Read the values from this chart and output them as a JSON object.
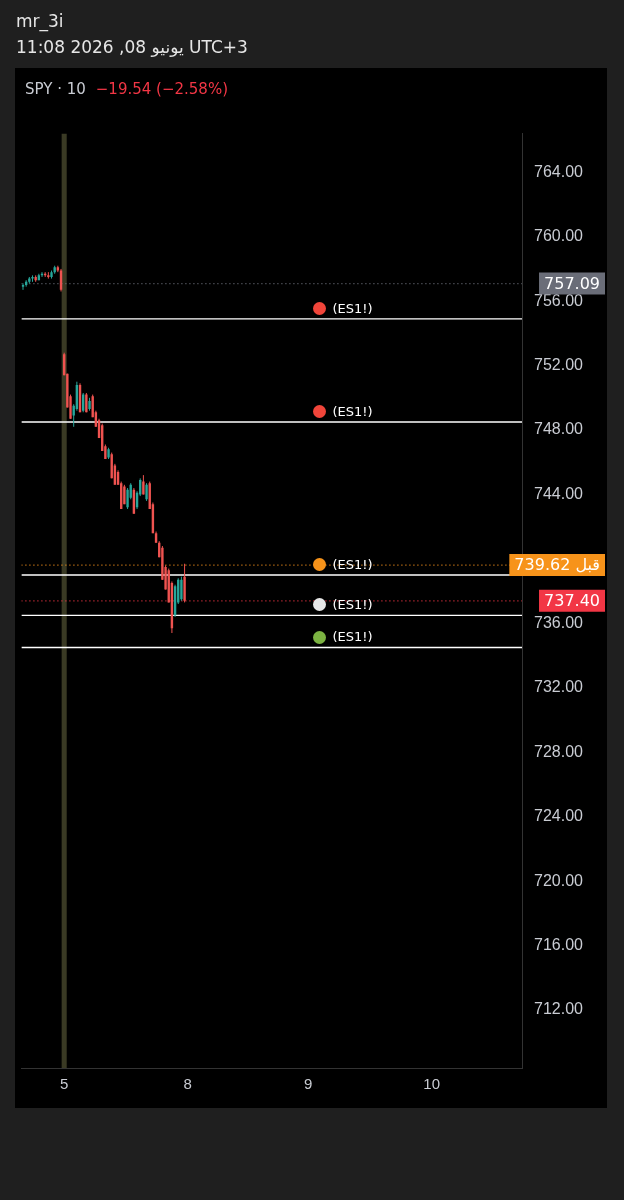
{
  "chart_data": {
    "type": "candlestick",
    "title": "SPY · 10",
    "subtitle": "−19.54 (−2.58%)",
    "annotations": [
      "mr_3i",
      "11:08 2026 ,08 يونيو UTC+3"
    ],
    "categories": [
      null,
      null,
      null,
      null,
      null,
      null,
      null,
      null,
      null,
      null,
      null,
      null,
      null,
      "5",
      null,
      null,
      null,
      null,
      null,
      null,
      null,
      null,
      null,
      null,
      null,
      null,
      null,
      null,
      null,
      null,
      null,
      null,
      null,
      null,
      null,
      null,
      null,
      null,
      null,
      null,
      null,
      null,
      null,
      null,
      null,
      null,
      null,
      null,
      null,
      null,
      null,
      null,
      "8",
      null,
      null,
      null,
      null,
      null,
      null,
      null,
      null,
      null,
      null,
      null,
      null,
      null,
      null,
      null,
      null,
      null,
      null,
      null,
      null,
      null,
      null,
      null,
      null,
      null,
      null,
      null,
      null,
      null,
      null,
      null,
      null,
      null,
      null,
      null,
      null,
      null,
      "9",
      null,
      null,
      null,
      null,
      null,
      null,
      null,
      null,
      null,
      null,
      null,
      null,
      null,
      null,
      null,
      null,
      null,
      null,
      null,
      null,
      null,
      null,
      null,
      null,
      null,
      null,
      null,
      null,
      null,
      null,
      null,
      null,
      null,
      null,
      null,
      null,
      null,
      null,
      "10",
      null,
      null,
      null,
      null,
      null,
      null,
      null,
      null,
      null,
      null,
      null,
      null,
      null,
      null,
      null,
      null,
      null,
      null,
      null,
      null,
      null,
      null,
      null,
      null,
      null,
      null,
      null,
      null
    ],
    "ohlc": [
      [
        756.9,
        757.1,
        756.7,
        757.0
      ],
      [
        757.0,
        757.3,
        756.9,
        757.2
      ],
      [
        757.2,
        757.5,
        757.1,
        757.4
      ],
      [
        757.4,
        757.6,
        757.2,
        757.5
      ],
      [
        757.5,
        757.6,
        757.2,
        757.3
      ],
      [
        757.3,
        757.7,
        757.3,
        757.6
      ],
      [
        757.6,
        757.8,
        757.5,
        757.7
      ],
      [
        757.7,
        757.8,
        757.5,
        757.6
      ],
      [
        757.6,
        757.8,
        757.4,
        757.5
      ],
      [
        757.5,
        757.9,
        757.4,
        757.8
      ],
      [
        757.8,
        758.2,
        757.7,
        758.1
      ],
      [
        758.1,
        758.2,
        757.8,
        757.9
      ],
      [
        757.9,
        758.0,
        756.6,
        756.7
      ],
      [
        752.7,
        752.8,
        751.4,
        751.4
      ],
      [
        751.5,
        751.5,
        749.4,
        749.4
      ],
      [
        750.1,
        750.2,
        748.7,
        748.7
      ],
      [
        748.9,
        749.6,
        748.2,
        749.5
      ],
      [
        749.3,
        751.0,
        749.2,
        750.8
      ],
      [
        750.8,
        750.9,
        749.1,
        749.1
      ],
      [
        749.2,
        750.3,
        749.1,
        750.2
      ],
      [
        750.2,
        750.3,
        749.1,
        749.1
      ],
      [
        749.3,
        750.0,
        749.2,
        749.8
      ],
      [
        750.1,
        750.2,
        748.8,
        748.8
      ],
      [
        749.1,
        749.2,
        748.2,
        748.2
      ],
      [
        748.6,
        748.7,
        747.5,
        747.5
      ],
      [
        748.3,
        748.4,
        746.7,
        746.7
      ],
      [
        747.0,
        747.1,
        746.2,
        746.2
      ],
      [
        746.3,
        746.9,
        746.2,
        746.8
      ],
      [
        746.5,
        746.6,
        745.0,
        745.0
      ],
      [
        745.8,
        745.9,
        744.6,
        744.6
      ],
      [
        745.4,
        745.5,
        744.6,
        744.6
      ],
      [
        744.7,
        744.8,
        743.1,
        743.1
      ],
      [
        744.5,
        744.6,
        743.4,
        743.4
      ],
      [
        743.2,
        744.4,
        743.1,
        744.3
      ],
      [
        743.8,
        744.7,
        743.7,
        744.6
      ],
      [
        744.3,
        744.4,
        742.8,
        742.8
      ],
      [
        743.2,
        744.2,
        743.1,
        744.1
      ],
      [
        744.0,
        745.0,
        743.9,
        744.9
      ],
      [
        744.8,
        745.2,
        744.0,
        744.0
      ],
      [
        743.7,
        744.7,
        743.6,
        744.6
      ],
      [
        744.7,
        744.8,
        743.1,
        743.1
      ],
      [
        743.4,
        743.5,
        741.6,
        741.6
      ],
      [
        741.6,
        741.7,
        741.0,
        741.0
      ],
      [
        741.0,
        741.1,
        740.1,
        740.1
      ],
      [
        740.7,
        740.8,
        738.7,
        738.7
      ],
      [
        739.5,
        739.6,
        738.1,
        738.1
      ],
      [
        739.3,
        739.4,
        737.3,
        737.3
      ],
      [
        738.5,
        738.6,
        735.4,
        735.7
      ],
      [
        736.5,
        738.4,
        736.4,
        738.3
      ],
      [
        737.3,
        738.8,
        737.2,
        738.7
      ],
      [
        737.5,
        738.9,
        737.4,
        738.7
      ],
      [
        738.9,
        739.7,
        737.3,
        737.4
      ],
      null,
      null,
      null,
      null,
      null,
      null,
      null,
      null,
      null,
      null,
      null,
      null,
      null,
      null,
      null,
      null,
      null,
      null,
      null,
      null,
      null,
      null,
      null,
      null,
      null,
      null,
      null,
      null,
      null,
      null,
      null,
      null,
      null,
      null,
      null,
      null,
      null,
      null,
      null,
      null,
      null,
      null,
      null,
      null,
      null,
      null,
      null,
      null,
      null,
      null,
      null,
      null,
      null,
      null,
      null,
      null,
      null,
      null,
      null,
      null,
      null,
      null,
      null,
      null,
      null,
      null,
      null,
      null,
      null,
      null,
      null,
      null,
      null,
      null,
      null,
      null,
      null,
      null,
      null,
      null,
      null,
      null,
      null,
      null,
      null,
      null,
      null,
      null,
      null,
      null,
      null,
      null,
      null,
      null,
      null,
      null,
      null,
      null,
      null,
      null,
      null,
      null,
      null,
      null,
      null,
      null
    ],
    "ylim": [
      708.4,
      766.4
    ],
    "yticks": [
      {
        "value": 712,
        "label": "712.00"
      },
      {
        "value": 716,
        "label": "716.00"
      },
      {
        "value": 720,
        "label": "720.00"
      },
      {
        "value": 724,
        "label": "724.00"
      },
      {
        "value": 728,
        "label": "728.00"
      },
      {
        "value": 732,
        "label": "732.00"
      },
      {
        "value": 736,
        "label": "736.00"
      },
      {
        "value": 744,
        "label": "744.00"
      },
      {
        "value": 748,
        "label": "748.00"
      },
      {
        "value": 752,
        "label": "752.00"
      },
      {
        "value": 756,
        "label": "756.00"
      },
      {
        "value": 760,
        "label": "760.00"
      },
      {
        "value": 764,
        "label": "764.00"
      }
    ],
    "grid": false,
    "ref_lines": [
      {
        "axis": "y",
        "value": 754.9,
        "label": "(ES1!)",
        "color": "#ffffff",
        "line_style": "solid"
      },
      {
        "axis": "y",
        "value": 748.5,
        "label": "(ES1!)",
        "color": "#ffffff",
        "line_style": "solid"
      },
      {
        "axis": "y",
        "value": 739.0,
        "label": "(ES1!)",
        "color": "#ffffff",
        "line_style": "solid"
      },
      {
        "axis": "y",
        "value": 736.5,
        "label": "(ES1!)",
        "color": "#ffffff",
        "line_style": "solid"
      },
      {
        "axis": "y",
        "value": 734.5,
        "label": "(ES1!)",
        "color": "#ffffff",
        "line_style": "solid"
      },
      {
        "axis": "y",
        "value": 757.09,
        "label": "757.09",
        "color": "#6a6d78",
        "line_style": "dotted"
      },
      {
        "axis": "y",
        "value": 739.62,
        "label": "قبل 739.62",
        "color": "#f7931a",
        "line_style": "dotted"
      },
      {
        "axis": "y",
        "value": 737.4,
        "label": "737.40",
        "color": "#f23645",
        "line_style": "dotted"
      }
    ],
    "bands": [
      {
        "axis": "x",
        "from": "5",
        "to": "5",
        "color": "#3a3a24"
      }
    ]
  }
}
